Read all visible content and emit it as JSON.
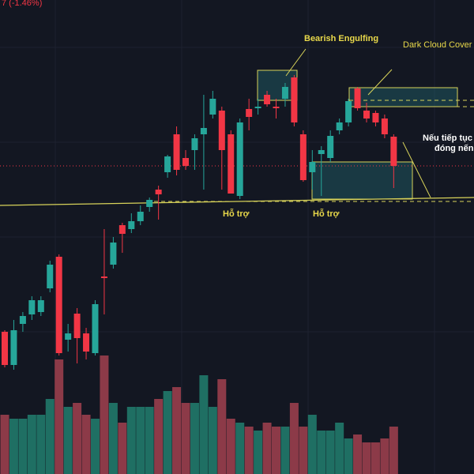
{
  "chart_data": {
    "type": "candlestick",
    "title": "7 (-1.46%)",
    "annotations": [
      "Bearish Engulfing",
      "Dark Cloud Cover",
      "Nếu tiếp tục",
      "đóng nến đỏ",
      "Hỗ trợ",
      "Hỗ trợ"
    ],
    "open": [
      180,
      138,
      190,
      202,
      205,
      235,
      275,
      170,
      203,
      178,
      153,
      250,
      265,
      315,
      310,
      320,
      338,
      360,
      382,
      430,
      400,
      410,
      430,
      455,
      460,
      430,
      352,
      462,
      463,
      480,
      465,
      475,
      502,
      430,
      382,
      405,
      400,
      435,
      445,
      488,
      460,
      457,
      450,
      427
    ],
    "high": [
      182,
      195,
      205,
      225,
      225,
      270,
      278,
      190,
      210,
      185,
      220,
      310,
      300,
      318,
      330,
      340,
      350,
      365,
      404,
      440,
      410,
      430,
      480,
      485,
      465,
      435,
      450,
      475,
      475,
      485,
      475,
      495,
      505,
      435,
      410,
      415,
      435,
      450,
      475,
      490,
      470,
      460,
      455,
      430
    ],
    "low": [
      135,
      132,
      180,
      195,
      200,
      230,
      150,
      155,
      140,
      145,
      150,
      202,
      260,
      280,
      305,
      315,
      332,
      322,
      375,
      378,
      385,
      385,
      360,
      450,
      360,
      355,
      348,
      435,
      455,
      465,
      450,
      465,
      440,
      370,
      360,
      352,
      395,
      430,
      440,
      460,
      445,
      440,
      425,
      362
    ],
    "close": [
      138,
      182,
      200,
      220,
      220,
      265,
      153,
      178,
      172,
      155,
      215,
      248,
      293,
      304,
      320,
      332,
      347,
      354,
      402,
      385,
      390,
      425,
      438,
      475,
      410,
      355,
      445,
      452,
      465,
      468,
      463,
      490,
      445,
      372,
      395,
      410,
      428,
      445,
      472,
      463,
      450,
      445,
      430,
      390
    ],
    "volume": [
      75,
      70,
      70,
      75,
      75,
      95,
      145,
      85,
      90,
      75,
      70,
      150,
      90,
      65,
      85,
      85,
      85,
      95,
      105,
      110,
      90,
      90,
      125,
      85,
      120,
      70,
      65,
      60,
      55,
      65,
      60,
      60,
      90,
      60,
      75,
      55,
      55,
      65,
      45,
      50,
      40,
      40,
      45,
      60
    ],
    "ylim": [
      0,
      600
    ],
    "y2lim": [
      0,
      600
    ],
    "up_color": "#26a69a",
    "down_color": "#f23645",
    "volume_up_color": "#1f6f63",
    "volume_down_color": "#8c3a48"
  }
}
